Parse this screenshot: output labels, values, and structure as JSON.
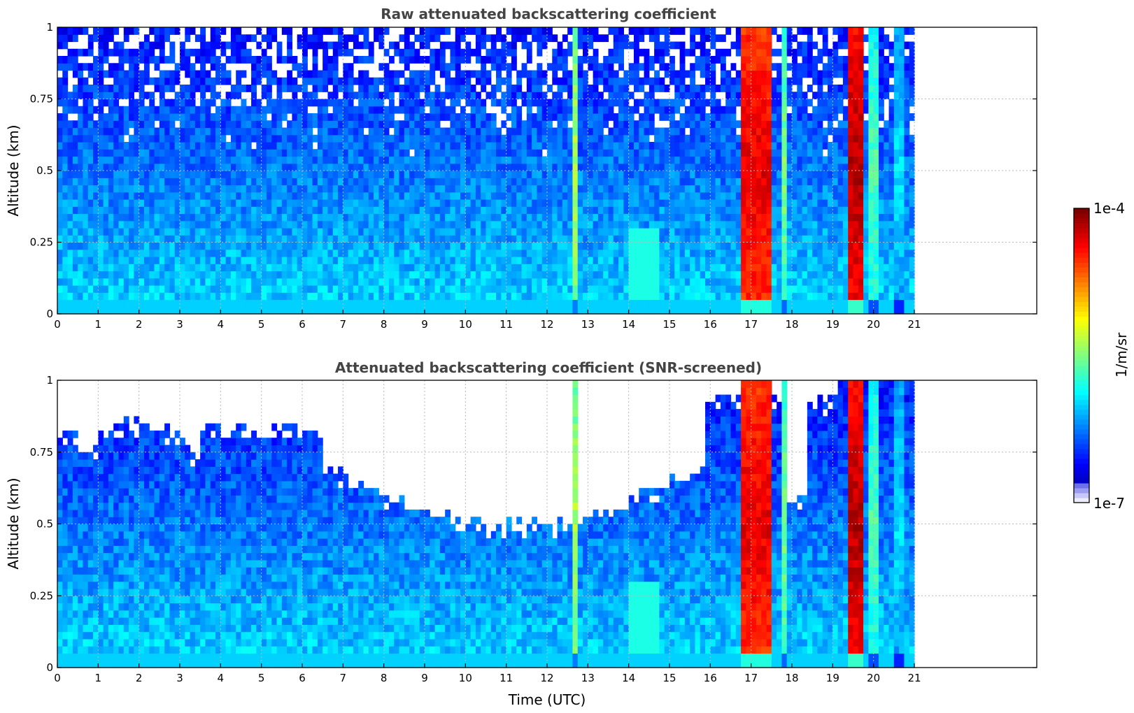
{
  "chart_data": [
    {
      "type": "heatmap",
      "title": "Raw attenuated backscattering coefficient",
      "xlabel": "",
      "ylabel": "Altitude (km)",
      "xlim": [
        0,
        24
      ],
      "ylim": [
        0,
        1
      ],
      "x_data_extent": [
        0,
        21
      ],
      "x_ticks": [
        "0",
        "1",
        "2",
        "3",
        "4",
        "5",
        "6",
        "7",
        "8",
        "9",
        "10",
        "11",
        "12",
        "13",
        "14",
        "15",
        "16",
        "17",
        "18",
        "19",
        "20",
        "21"
      ],
      "y_ticks": [
        "0",
        "0.25",
        "0.5",
        "0.75",
        "1"
      ],
      "grid": true,
      "colormap": "jet",
      "color_scale": "log",
      "value_range": [
        1e-07,
        0.0001
      ],
      "snr_screened": false,
      "cloud_bands": [
        {
          "x_range": [
            12.6,
            12.75
          ],
          "peak": 0.55
        },
        {
          "x_range": [
            16.7,
            17.45
          ],
          "peak": 0.9
        },
        {
          "x_range": [
            17.7,
            17.85
          ],
          "peak": 0.5
        },
        {
          "x_range": [
            19.35,
            19.75
          ],
          "peak": 0.95
        },
        {
          "x_range": [
            19.9,
            20.1
          ],
          "peak": 0.45
        },
        {
          "x_range": [
            20.5,
            20.7
          ],
          "peak": 0.35
        }
      ]
    },
    {
      "type": "heatmap",
      "title": "Attenuated backscattering coefficient (SNR-screened)",
      "xlabel": "Time (UTC)",
      "ylabel": "Altitude (km)",
      "xlim": [
        0,
        24
      ],
      "ylim": [
        0,
        1
      ],
      "x_data_extent": [
        0,
        21
      ],
      "x_ticks": [
        "0",
        "1",
        "2",
        "3",
        "4",
        "5",
        "6",
        "7",
        "8",
        "9",
        "10",
        "11",
        "12",
        "13",
        "14",
        "15",
        "16",
        "17",
        "18",
        "19",
        "20",
        "21"
      ],
      "y_ticks": [
        "0",
        "0.25",
        "0.5",
        "0.75",
        "1"
      ],
      "grid": true,
      "colormap": "jet",
      "color_scale": "log",
      "value_range": [
        1e-07,
        0.0001
      ],
      "snr_screened": true,
      "cloud_bands": [
        {
          "x_range": [
            12.6,
            12.75
          ],
          "peak": 0.55
        },
        {
          "x_range": [
            16.7,
            17.45
          ],
          "peak": 0.9
        },
        {
          "x_range": [
            17.7,
            17.85
          ],
          "peak": 0.5
        },
        {
          "x_range": [
            19.35,
            19.75
          ],
          "peak": 0.95
        },
        {
          "x_range": [
            19.9,
            20.1
          ],
          "peak": 0.45
        },
        {
          "x_range": [
            20.5,
            20.7
          ],
          "peak": 0.35
        }
      ]
    }
  ],
  "colorbar": {
    "max_label": "1e-4",
    "min_label": "1e-7",
    "unit_label": "1/m/sr"
  }
}
